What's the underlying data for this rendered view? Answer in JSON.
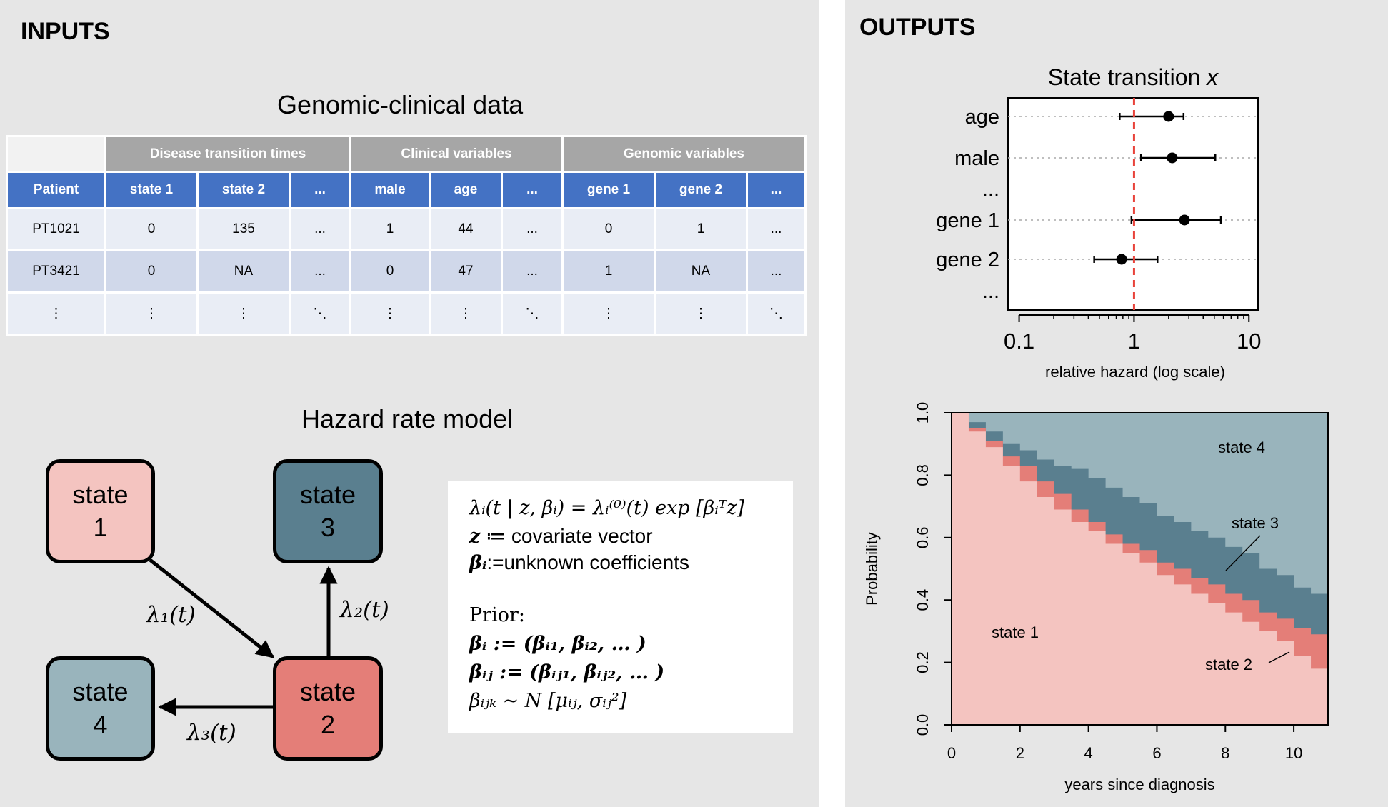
{
  "inputs": {
    "title": "INPUTS",
    "table_title": "Genomic-clinical data",
    "groups": [
      "Disease  transition times",
      "Clinical variables",
      "Genomic variables"
    ],
    "headers": [
      "Patient",
      "state 1",
      "state 2",
      "...",
      "male",
      "age",
      "...",
      "gene 1",
      "gene 2",
      "..."
    ],
    "rows": [
      [
        "PT1021",
        "0",
        "135",
        "...",
        "1",
        "44",
        "...",
        "0",
        "1",
        "..."
      ],
      [
        "PT3421",
        "0",
        "NA",
        "...",
        "0",
        "47",
        "...",
        "1",
        "NA",
        "..."
      ],
      [
        "⋮",
        "⋮",
        "⋮",
        "⋱",
        "⋮",
        "⋮",
        "⋱",
        "⋮",
        "⋮",
        "⋱"
      ]
    ],
    "model_title": "Hazard rate model",
    "states": [
      {
        "line1": "state",
        "line2": "1",
        "color": "#f4c4c0"
      },
      {
        "line1": "state",
        "line2": "3",
        "color": "#5a7f8f"
      },
      {
        "line1": "state",
        "line2": "4",
        "color": "#99b4bc"
      },
      {
        "line1": "state",
        "line2": "2",
        "color": "#e47e78"
      }
    ],
    "transitions": {
      "t1": "λ₁(t)",
      "t2": "λ₂(t)",
      "t3": "λ₃(t)"
    },
    "formula": {
      "eq": "λᵢ(t | z, βᵢ) = λᵢ⁽⁰⁾(t) exp [βᵢᵀz]",
      "z_sym": "z",
      "z_def": " ≔ covariate vector",
      "b_sym": "βᵢ",
      "b_def": ":=unknown coefficients",
      "prior_label": "Prior:",
      "prior1": "βᵢ := (βᵢ₁, βᵢ₂, … )",
      "prior2": "βᵢⱼ := (βᵢⱼ₁, βᵢⱼ₂, … )",
      "prior3": "βᵢⱼₖ ~ N [μᵢⱼ, σᵢⱼ²]"
    }
  },
  "outputs": {
    "title": "OUTPUTS",
    "colors": {
      "state1": "#f4c4c0",
      "state2": "#e47e78",
      "state3": "#5a7f8f",
      "state4": "#99b4bc"
    }
  },
  "chart_data": [
    {
      "type": "forest",
      "title_text": "State transition ",
      "title_var": "x",
      "xlabel": "relative hazard (log scale)",
      "xscale": "log",
      "xlim": [
        0.08,
        12
      ],
      "xticks": [
        0.1,
        1,
        10
      ],
      "xtick_labels": [
        "0.1",
        "1",
        "10"
      ],
      "reference_line": 1,
      "rows": [
        {
          "label": "age",
          "estimate": 2.0,
          "lower": 0.75,
          "upper": 2.7
        },
        {
          "label": "male",
          "estimate": 2.15,
          "lower": 1.15,
          "upper": 5.1
        },
        {
          "label": "...",
          "estimate": null
        },
        {
          "label": "gene 1",
          "estimate": 2.75,
          "lower": 0.95,
          "upper": 5.7
        },
        {
          "label": "gene 2",
          "estimate": 0.78,
          "lower": 0.45,
          "upper": 1.6
        },
        {
          "label": "...",
          "estimate": null
        }
      ]
    },
    {
      "type": "area",
      "stacked": true,
      "xlabel": "years since diagnosis",
      "ylabel": "Probability",
      "xlim": [
        0,
        11
      ],
      "ylim": [
        0,
        1
      ],
      "xticks": [
        0,
        2,
        4,
        6,
        8,
        10
      ],
      "yticks": [
        "0.0",
        "0.2",
        "0.4",
        "0.6",
        "0.8",
        "1.0"
      ],
      "x": [
        0,
        0.5,
        1,
        1.5,
        2,
        2.5,
        3,
        3.5,
        4,
        4.5,
        5,
        5.5,
        6,
        6.5,
        7,
        7.5,
        8,
        8.5,
        9,
        9.5,
        10,
        10.5,
        11
      ],
      "series": [
        {
          "name": "state 1",
          "values": [
            1.0,
            0.94,
            0.89,
            0.83,
            0.78,
            0.73,
            0.69,
            0.65,
            0.62,
            0.58,
            0.55,
            0.52,
            0.48,
            0.45,
            0.42,
            0.39,
            0.36,
            0.33,
            0.3,
            0.27,
            0.22,
            0.18,
            0.16
          ]
        },
        {
          "name": "state 2",
          "values": [
            0.0,
            0.01,
            0.02,
            0.03,
            0.05,
            0.05,
            0.05,
            0.04,
            0.03,
            0.03,
            0.03,
            0.04,
            0.04,
            0.05,
            0.05,
            0.06,
            0.06,
            0.07,
            0.06,
            0.07,
            0.09,
            0.11,
            0.12
          ]
        },
        {
          "name": "state 3",
          "values": [
            0.0,
            0.02,
            0.03,
            0.04,
            0.05,
            0.07,
            0.09,
            0.13,
            0.14,
            0.15,
            0.15,
            0.15,
            0.15,
            0.15,
            0.15,
            0.15,
            0.15,
            0.15,
            0.14,
            0.14,
            0.13,
            0.13,
            0.12
          ]
        },
        {
          "name": "state 4",
          "values": [
            0.0,
            0.03,
            0.06,
            0.1,
            0.12,
            0.15,
            0.17,
            0.18,
            0.21,
            0.24,
            0.27,
            0.29,
            0.33,
            0.35,
            0.38,
            0.4,
            0.43,
            0.45,
            0.5,
            0.52,
            0.56,
            0.58,
            0.6
          ]
        }
      ],
      "annotations": [
        "state 1",
        "state 2",
        "state 3",
        "state 4"
      ]
    }
  ]
}
